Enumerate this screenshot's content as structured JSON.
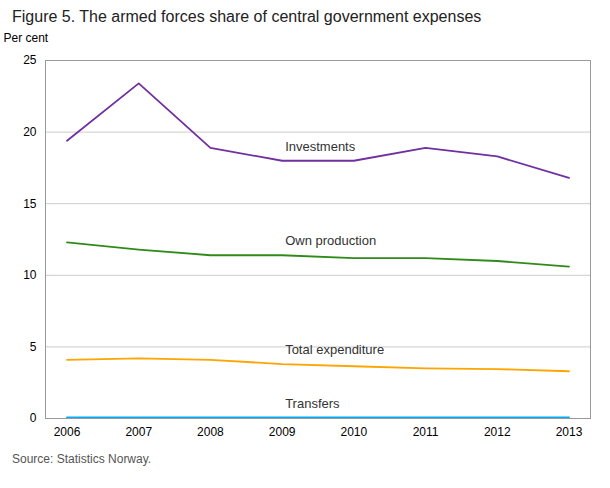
{
  "chart_data": {
    "type": "line",
    "title": "Figure 5. The armed forces share of central government expenses",
    "y_label": "Per cent",
    "source": "Source: Statistics Norway.",
    "x": [
      2006,
      2007,
      2008,
      2009,
      2010,
      2011,
      2012,
      2013
    ],
    "series": [
      {
        "name": "Investments",
        "color": "#7030A0",
        "values": [
          19.4,
          23.4,
          18.9,
          18.0,
          18.0,
          18.9,
          18.3,
          16.8
        ]
      },
      {
        "name": "Own production",
        "color": "#2E8B1A",
        "values": [
          12.3,
          11.8,
          11.4,
          11.4,
          11.2,
          11.2,
          11.0,
          10.6
        ]
      },
      {
        "name": "Total expenditure",
        "color": "#FFA500",
        "values": [
          4.1,
          4.2,
          4.1,
          3.8,
          3.65,
          3.5,
          3.45,
          3.3
        ]
      },
      {
        "name": "Transfers",
        "color": "#00AAFF",
        "values": [
          0.07,
          0.07,
          0.07,
          0.07,
          0.07,
          0.07,
          0.07,
          0.07
        ]
      }
    ],
    "xlim": [
      2005.7,
      2013.3
    ],
    "xticks": [
      2006,
      2007,
      2008,
      2009,
      2010,
      2011,
      2012,
      2013
    ],
    "ylim": [
      0,
      25
    ],
    "yticks": [
      0,
      5,
      10,
      15,
      20,
      25
    ],
    "grid": true
  }
}
